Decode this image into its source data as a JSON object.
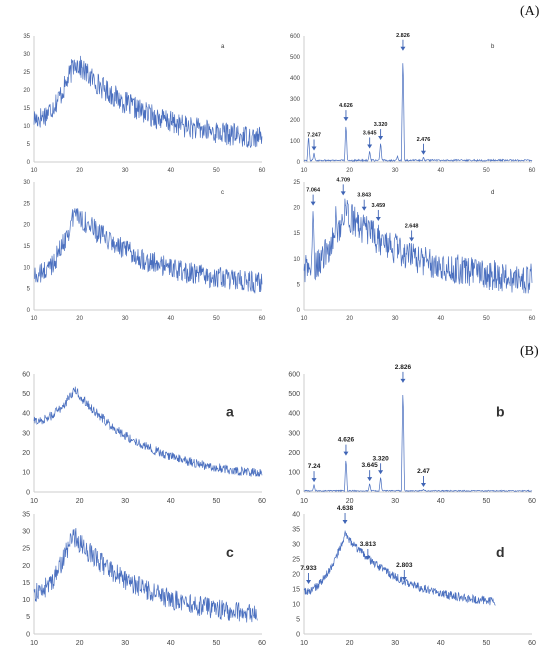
{
  "section_labels": [
    "(A)",
    "(B)"
  ],
  "colors": {
    "line": "#4a6fbf",
    "axis": "#cccccc",
    "arrow": "#3f64b5",
    "tick_text": "#444444"
  },
  "chart_data": [
    {
      "type": "line",
      "panel": "A-a",
      "letter": "a",
      "xlim": [
        10,
        60
      ],
      "ylim": [
        0,
        35
      ],
      "xticks": [
        10,
        20,
        30,
        40,
        50,
        60
      ],
      "yticks": [
        0,
        5,
        10,
        15,
        20,
        25,
        30,
        35
      ],
      "peak_x": 19,
      "peak_y": 28,
      "start_y": 12,
      "end_y": 5,
      "noise": 3.2,
      "annotations": []
    },
    {
      "type": "line",
      "panel": "A-b",
      "letter": "b",
      "xlim": [
        10,
        60
      ],
      "ylim": [
        0,
        600
      ],
      "xticks": [
        10,
        20,
        30,
        40,
        50,
        60
      ],
      "yticks": [
        0,
        100,
        200,
        300,
        400,
        500,
        600
      ],
      "baseline": 8,
      "noise": 4,
      "peaks": [
        [
          11,
          130
        ],
        [
          12.2,
          45
        ],
        [
          19.2,
          185
        ],
        [
          24.4,
          55
        ],
        [
          26.8,
          95
        ],
        [
          30.5,
          30
        ],
        [
          31.7,
          520
        ],
        [
          36.2,
          25
        ]
      ],
      "annotations": [
        {
          "x": 12.2,
          "y": 45,
          "label": "7.247"
        },
        {
          "x": 19.2,
          "y": 185,
          "label": "4.626"
        },
        {
          "x": 24.4,
          "y": 55,
          "label": "3.645"
        },
        {
          "x": 26.8,
          "y": 95,
          "label": "3.320"
        },
        {
          "x": 31.7,
          "y": 520,
          "label": "2.826"
        },
        {
          "x": 36.2,
          "y": 25,
          "label": "2.476"
        }
      ]
    },
    {
      "type": "line",
      "panel": "A-c",
      "letter": "c",
      "xlim": [
        10,
        60
      ],
      "ylim": [
        0,
        30
      ],
      "xticks": [
        10,
        20,
        30,
        40,
        50,
        60
      ],
      "yticks": [
        0,
        5,
        10,
        15,
        20,
        25,
        30
      ],
      "peak_x": 19,
      "peak_y": 23,
      "start_y": 8,
      "end_y": 5,
      "noise": 2.6,
      "annotations": []
    },
    {
      "type": "line",
      "panel": "A-d",
      "letter": "d",
      "xlim": [
        10,
        60
      ],
      "ylim": [
        0,
        25
      ],
      "xticks": [
        10,
        20,
        30,
        40,
        50,
        60
      ],
      "yticks": [
        0,
        5,
        10,
        15,
        20,
        25
      ],
      "peak_x": 19,
      "peak_y": 19,
      "start_y": 8,
      "end_y": 5,
      "noise": 3.0,
      "spikes": [
        [
          12,
          20
        ],
        [
          17,
          21
        ],
        [
          19,
          23
        ],
        [
          33.6,
          12
        ]
      ],
      "annotations": [
        {
          "x": 12,
          "y": 20,
          "label": "7.064"
        },
        {
          "x": 18.6,
          "y": 22,
          "label": "4.709"
        },
        {
          "x": 23.2,
          "y": 19,
          "label": "3.843"
        },
        {
          "x": 26.3,
          "y": 17,
          "label": "3.459"
        },
        {
          "x": 33.6,
          "y": 13,
          "label": "2.648"
        }
      ]
    },
    {
      "type": "line",
      "panel": "B-a",
      "letter": "a",
      "xlim": [
        10,
        60
      ],
      "ylim": [
        0,
        60
      ],
      "xticks": [
        10,
        20,
        30,
        40,
        50,
        60
      ],
      "yticks": [
        0,
        10,
        20,
        30,
        40,
        50,
        60
      ],
      "peak_x": 19,
      "peak_y": 52,
      "start_y": 36,
      "end_y": 6,
      "noise": 2.4,
      "annotations": []
    },
    {
      "type": "line",
      "panel": "B-b",
      "letter": "b",
      "xlim": [
        10,
        60
      ],
      "ylim": [
        0,
        600
      ],
      "xticks": [
        10,
        20,
        30,
        40,
        50,
        60
      ],
      "yticks": [
        0,
        100,
        200,
        300,
        400,
        500,
        600
      ],
      "baseline": 6,
      "noise": 3,
      "peaks": [
        [
          12.2,
          40
        ],
        [
          19.2,
          175
        ],
        [
          24.4,
          45
        ],
        [
          26.8,
          80
        ],
        [
          31.7,
          545
        ],
        [
          36.2,
          15
        ]
      ],
      "annotations": [
        {
          "x": 12.2,
          "y": 40,
          "label": "7.24"
        },
        {
          "x": 19.2,
          "y": 175,
          "label": "4.626"
        },
        {
          "x": 24.4,
          "y": 45,
          "label": "3.645"
        },
        {
          "x": 26.8,
          "y": 80,
          "label": "3.320"
        },
        {
          "x": 31.7,
          "y": 545,
          "label": "2.826"
        },
        {
          "x": 36.2,
          "y": 15,
          "label": "2.47"
        }
      ]
    },
    {
      "type": "line",
      "panel": "B-c",
      "letter": "c",
      "xlim": [
        10,
        60
      ],
      "ylim": [
        0,
        35
      ],
      "xticks": [
        10,
        20,
        30,
        40,
        50,
        60
      ],
      "yticks": [
        0,
        5,
        10,
        15,
        20,
        25,
        30,
        35
      ],
      "peak_x": 18.5,
      "peak_y": 29,
      "start_y": 12,
      "end_y": 4,
      "noise": 3.0,
      "x_end": 59,
      "annotations": []
    },
    {
      "type": "line",
      "panel": "B-d",
      "letter": "d",
      "xlim": [
        10,
        60
      ],
      "ylim": [
        0,
        40
      ],
      "xticks": [
        10,
        20,
        30,
        40,
        50,
        60
      ],
      "yticks": [
        0,
        5,
        10,
        15,
        20,
        25,
        30,
        35,
        40
      ],
      "peak_x": 19,
      "peak_y": 33,
      "start_y": 14,
      "end_y": 9,
      "noise": 1.4,
      "x_end": 52,
      "annotations": [
        {
          "x": 11,
          "y": 16,
          "label": "7.933"
        },
        {
          "x": 19,
          "y": 36,
          "label": "4.638"
        },
        {
          "x": 24,
          "y": 24,
          "label": "3.813"
        },
        {
          "x": 32,
          "y": 17,
          "label": "2.803"
        }
      ]
    }
  ]
}
